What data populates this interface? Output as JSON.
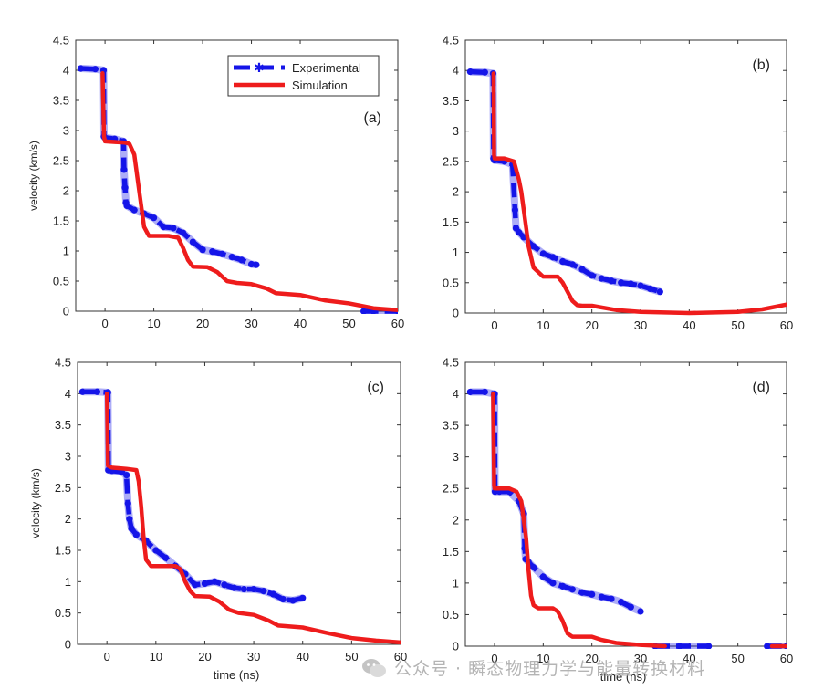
{
  "figure": {
    "watermark_text": "公众号 · 瞬态物理力学与能量转换材料",
    "colors": {
      "experimental": "#1515e8",
      "simulation": "#ee1c1c",
      "axis": "#333333",
      "watermark": "#b4b4b4"
    }
  },
  "chart_data": [
    {
      "type": "line",
      "panel_label": "(a)",
      "xlabel": "",
      "ylabel": "velocity (km/s)",
      "xlim": [
        -6,
        60
      ],
      "ylim": [
        0,
        4.5
      ],
      "xticks": [
        0,
        10,
        20,
        30,
        40,
        50,
        60
      ],
      "yticks": [
        0,
        0.5,
        1,
        1.5,
        2,
        2.5,
        3,
        3.5,
        4,
        4.5
      ],
      "legend": {
        "position": "top-right",
        "entries": [
          "Experimental",
          "Simulation"
        ]
      },
      "series": [
        {
          "name": "Experimental",
          "style": "dashed-markers",
          "x": [
            -5,
            -2,
            -0.3,
            -0.2,
            0,
            2,
            3.8,
            3.9,
            4.1,
            4.3,
            4.5,
            6,
            8,
            10,
            12,
            14,
            16,
            18,
            20,
            22,
            24,
            26,
            28,
            30,
            31,
            null,
            53,
            55,
            60
          ],
          "y": [
            4.03,
            4.02,
            4.0,
            2.9,
            2.88,
            2.86,
            2.82,
            2.35,
            2.05,
            1.8,
            1.75,
            1.68,
            1.62,
            1.55,
            1.4,
            1.38,
            1.3,
            1.15,
            1.02,
            0.99,
            0.95,
            0.9,
            0.85,
            0.78,
            0.77,
            null,
            0.0,
            0.0,
            0.0
          ]
        },
        {
          "name": "Simulation",
          "style": "solid",
          "x": [
            -0.5,
            -0.2,
            0,
            4,
            5,
            6,
            7,
            8,
            9,
            13,
            15,
            16,
            17,
            18,
            21,
            23,
            25,
            27,
            30,
            33,
            35,
            40,
            45,
            50,
            55,
            60
          ],
          "y": [
            3.95,
            2.9,
            2.82,
            2.8,
            2.78,
            2.6,
            2.0,
            1.4,
            1.25,
            1.25,
            1.22,
            1.05,
            0.85,
            0.74,
            0.73,
            0.65,
            0.5,
            0.47,
            0.45,
            0.38,
            0.3,
            0.27,
            0.18,
            0.13,
            0.05,
            0.02
          ]
        }
      ]
    },
    {
      "type": "line",
      "panel_label": "(b)",
      "xlabel": "",
      "ylabel": "",
      "xlim": [
        -6,
        60
      ],
      "ylim": [
        0,
        4.5
      ],
      "xticks": [
        0,
        10,
        20,
        30,
        40,
        50,
        60
      ],
      "yticks": [
        0,
        0.5,
        1,
        1.5,
        2,
        2.5,
        3,
        3.5,
        4,
        4.5
      ],
      "series": [
        {
          "name": "Experimental",
          "style": "dashed-markers",
          "x": [
            -5,
            -2,
            -0.3,
            -0.2,
            0,
            2,
            3.7,
            4.2,
            4.4,
            5,
            6,
            8,
            10,
            12,
            14,
            16,
            18,
            20,
            22,
            24,
            26,
            28,
            30,
            32,
            34
          ],
          "y": [
            3.98,
            3.97,
            3.95,
            2.55,
            2.52,
            2.5,
            2.45,
            1.7,
            1.4,
            1.33,
            1.25,
            1.1,
            0.98,
            0.92,
            0.85,
            0.8,
            0.72,
            0.62,
            0.57,
            0.53,
            0.5,
            0.48,
            0.45,
            0.4,
            0.35
          ]
        },
        {
          "name": "Simulation",
          "style": "solid",
          "x": [
            -0.2,
            -0.1,
            0,
            2,
            4,
            5,
            5.5,
            6,
            6.5,
            7,
            8,
            10,
            13,
            14,
            15,
            16,
            17,
            18,
            20,
            25,
            30,
            40,
            50,
            55,
            60
          ],
          "y": [
            3.95,
            2.6,
            2.55,
            2.55,
            2.5,
            2.2,
            2.0,
            1.7,
            1.4,
            1.1,
            0.75,
            0.6,
            0.6,
            0.5,
            0.35,
            0.2,
            0.13,
            0.12,
            0.12,
            0.05,
            0.02,
            0.0,
            0.02,
            0.06,
            0.14
          ]
        }
      ]
    },
    {
      "type": "line",
      "panel_label": "(c)",
      "xlabel": "time (ns)",
      "ylabel": "velocity (km/s)",
      "xlim": [
        -6,
        60
      ],
      "ylim": [
        0,
        4.5
      ],
      "xticks": [
        0,
        10,
        20,
        30,
        40,
        50,
        60
      ],
      "yticks": [
        0,
        0.5,
        1,
        1.5,
        2,
        2.5,
        3,
        3.5,
        4,
        4.5
      ],
      "series": [
        {
          "name": "Experimental",
          "style": "dashed-markers",
          "x": [
            -5,
            -2,
            0.2,
            0.3,
            1,
            3,
            4,
            4.3,
            4.6,
            5,
            6,
            8,
            10,
            12,
            14,
            16,
            18,
            20,
            22,
            24,
            26,
            28,
            30,
            32,
            34,
            36,
            38,
            40
          ],
          "y": [
            4.03,
            4.03,
            4.02,
            2.78,
            2.77,
            2.75,
            2.7,
            2.25,
            2.0,
            1.85,
            1.75,
            1.65,
            1.5,
            1.38,
            1.25,
            1.12,
            0.95,
            0.97,
            1.0,
            0.95,
            0.9,
            0.88,
            0.88,
            0.85,
            0.8,
            0.72,
            0.7,
            0.74
          ]
        },
        {
          "name": "Simulation",
          "style": "solid",
          "x": [
            0,
            0.2,
            1,
            4,
            6,
            6.5,
            7,
            7.5,
            8,
            9,
            14,
            15,
            16,
            17,
            18,
            21,
            23,
            25,
            27,
            30,
            33,
            35,
            40,
            45,
            50,
            55,
            60
          ],
          "y": [
            4.0,
            2.85,
            2.82,
            2.8,
            2.78,
            2.6,
            2.2,
            1.7,
            1.35,
            1.25,
            1.25,
            1.2,
            1.0,
            0.85,
            0.77,
            0.76,
            0.68,
            0.55,
            0.5,
            0.47,
            0.38,
            0.3,
            0.27,
            0.18,
            0.1,
            0.06,
            0.03
          ]
        }
      ]
    },
    {
      "type": "line",
      "panel_label": "(d)",
      "xlabel": "time (ns)",
      "ylabel": "",
      "xlim": [
        -6,
        60
      ],
      "ylim": [
        0,
        4.5
      ],
      "xticks": [
        0,
        10,
        20,
        30,
        40,
        50,
        60
      ],
      "yticks": [
        0,
        0.5,
        1,
        1.5,
        2,
        2.5,
        3,
        3.5,
        4,
        4.5
      ],
      "series": [
        {
          "name": "Experimental",
          "style": "dashed-markers",
          "x": [
            -5,
            -2,
            0,
            0.1,
            1,
            3,
            5,
            6,
            6.2,
            6.4,
            7,
            8,
            10,
            12,
            14,
            16,
            18,
            20,
            22,
            24,
            26,
            28,
            30,
            null,
            33,
            38,
            44,
            null,
            56,
            60
          ],
          "y": [
            4.03,
            4.03,
            4.0,
            2.45,
            2.45,
            2.45,
            2.3,
            2.1,
            1.55,
            1.38,
            1.33,
            1.25,
            1.1,
            1.0,
            0.95,
            0.9,
            0.85,
            0.82,
            0.78,
            0.75,
            0.7,
            0.62,
            0.55,
            null,
            0.0,
            0.0,
            0.0,
            null,
            0.0,
            0.0
          ]
        },
        {
          "name": "Simulation",
          "style": "solid",
          "x": [
            -0.3,
            -0.1,
            0,
            3,
            4.5,
            5.5,
            6,
            6.5,
            7,
            7.5,
            8,
            9,
            12,
            13,
            14,
            15,
            16,
            20,
            22,
            25,
            30,
            35,
            null,
            57,
            60
          ],
          "y": [
            4.0,
            2.55,
            2.5,
            2.5,
            2.45,
            2.3,
            2.0,
            1.7,
            1.2,
            0.8,
            0.65,
            0.6,
            0.6,
            0.55,
            0.4,
            0.2,
            0.15,
            0.15,
            0.1,
            0.05,
            0.02,
            0.0,
            null,
            0.0,
            0.0
          ]
        }
      ]
    }
  ]
}
